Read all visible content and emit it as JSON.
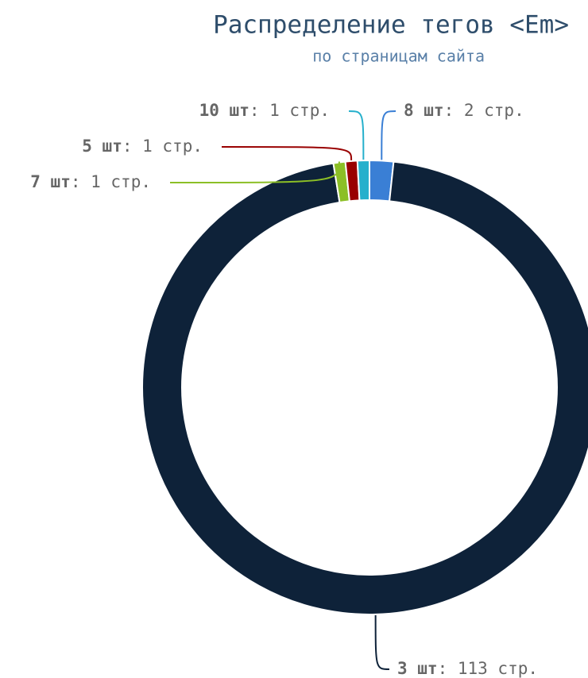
{
  "chart_data": {
    "type": "donut",
    "title": "Распределение тегов <Em>",
    "subtitle": "по страницам сайта",
    "categories": [
      "8 шт",
      "3 шт",
      "7 шт",
      "5 шт",
      "10 шт"
    ],
    "values": [
      2,
      113,
      1,
      1,
      1
    ],
    "value_labels": [
      ": 2 стр.",
      ": 113 стр.",
      ": 1 стр.",
      ": 1 стр.",
      ": 1 стр."
    ],
    "colors": [
      "#3a7fd5",
      "#0e2239",
      "#8cbf26",
      "#990000",
      "#26b0cc"
    ]
  }
}
